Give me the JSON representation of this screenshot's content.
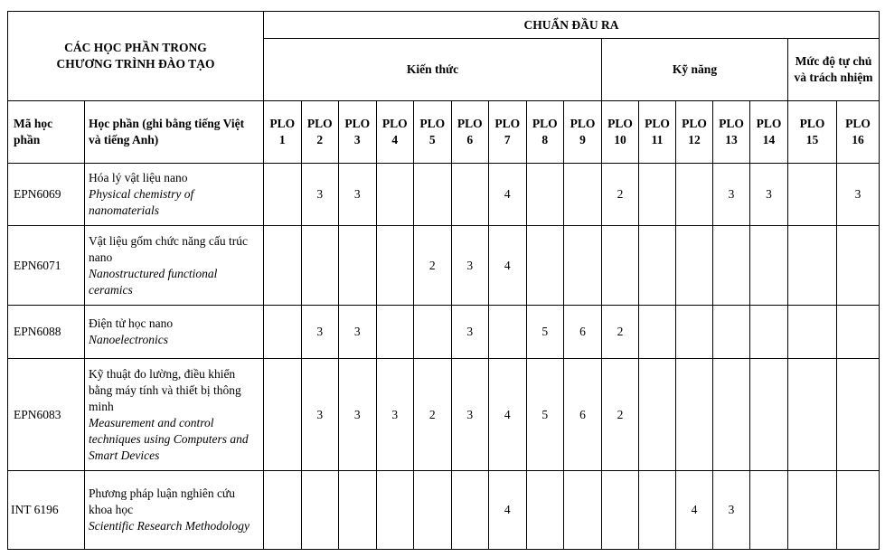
{
  "header": {
    "group_title": "CÁC HỌC PHẦN TRONG CHƯƠNG TRÌNH ĐÀO TẠO",
    "outcomes_title": "CHUẨN ĐẦU RA",
    "knowledge": "Kiến thức",
    "skills": "Kỹ năng",
    "autonomy": "Mức độ tự chủ và trách nhiệm",
    "code_col": "Mã học phần",
    "course_col": "Học phần (ghi bằng tiếng Việt và tiếng Anh)",
    "plo_labels": [
      "PLO 1",
      "PLO 2",
      "PLO 3",
      "PLO 4",
      "PLO 5",
      "PLO 6",
      "PLO 7",
      "PLO 8",
      "PLO 9",
      "PLO 10",
      "PLO 11",
      "PLO 12",
      "PLO 13",
      "PLO 14",
      "PLO 15",
      "PLO 16"
    ]
  },
  "rows": [
    {
      "code": "EPN6069",
      "name_vi": "Hóa lý vật liệu nano",
      "name_en": "Physical chemistry of nanomaterials",
      "values": [
        "",
        "3",
        "3",
        "",
        "",
        "",
        "4",
        "",
        "",
        "2",
        "",
        "",
        "3",
        "3",
        "",
        "3"
      ]
    },
    {
      "code": "EPN6071",
      "name_vi": "Vật liệu gốm chức năng cấu trúc nano",
      "name_en": "Nanostructured functional ceramics",
      "values": [
        "",
        "",
        "",
        "",
        "2",
        "3",
        "4",
        "",
        "",
        "",
        "",
        "",
        "",
        "",
        "",
        ""
      ]
    },
    {
      "code": "EPN6088",
      "name_vi": "Điện tử học nano",
      "name_en": "Nanoelectronics",
      "values": [
        "",
        "3",
        "3",
        "",
        "",
        "3",
        "",
        "5",
        "6",
        "2",
        "",
        "",
        "",
        "",
        "",
        ""
      ]
    },
    {
      "code": "EPN6083",
      "name_vi": "Kỹ thuật đo lường, điều khiển bằng máy tính và thiết bị thông minh",
      "name_en": "Measurement and control techniques using Computers and Smart Devices",
      "values": [
        "",
        "3",
        "3",
        "3",
        "2",
        "3",
        "4",
        "5",
        "6",
        "2",
        "",
        "",
        "",
        "",
        "",
        ""
      ]
    },
    {
      "code": "INT 6196",
      "name_vi": "Phương pháp luận nghiên cứu khoa học",
      "name_en": "Scientific Research Methodology",
      "values": [
        "",
        "",
        "",
        "",
        "",
        "",
        "4",
        "",
        "",
        "",
        "",
        "4",
        "3",
        "",
        "",
        ""
      ]
    }
  ]
}
